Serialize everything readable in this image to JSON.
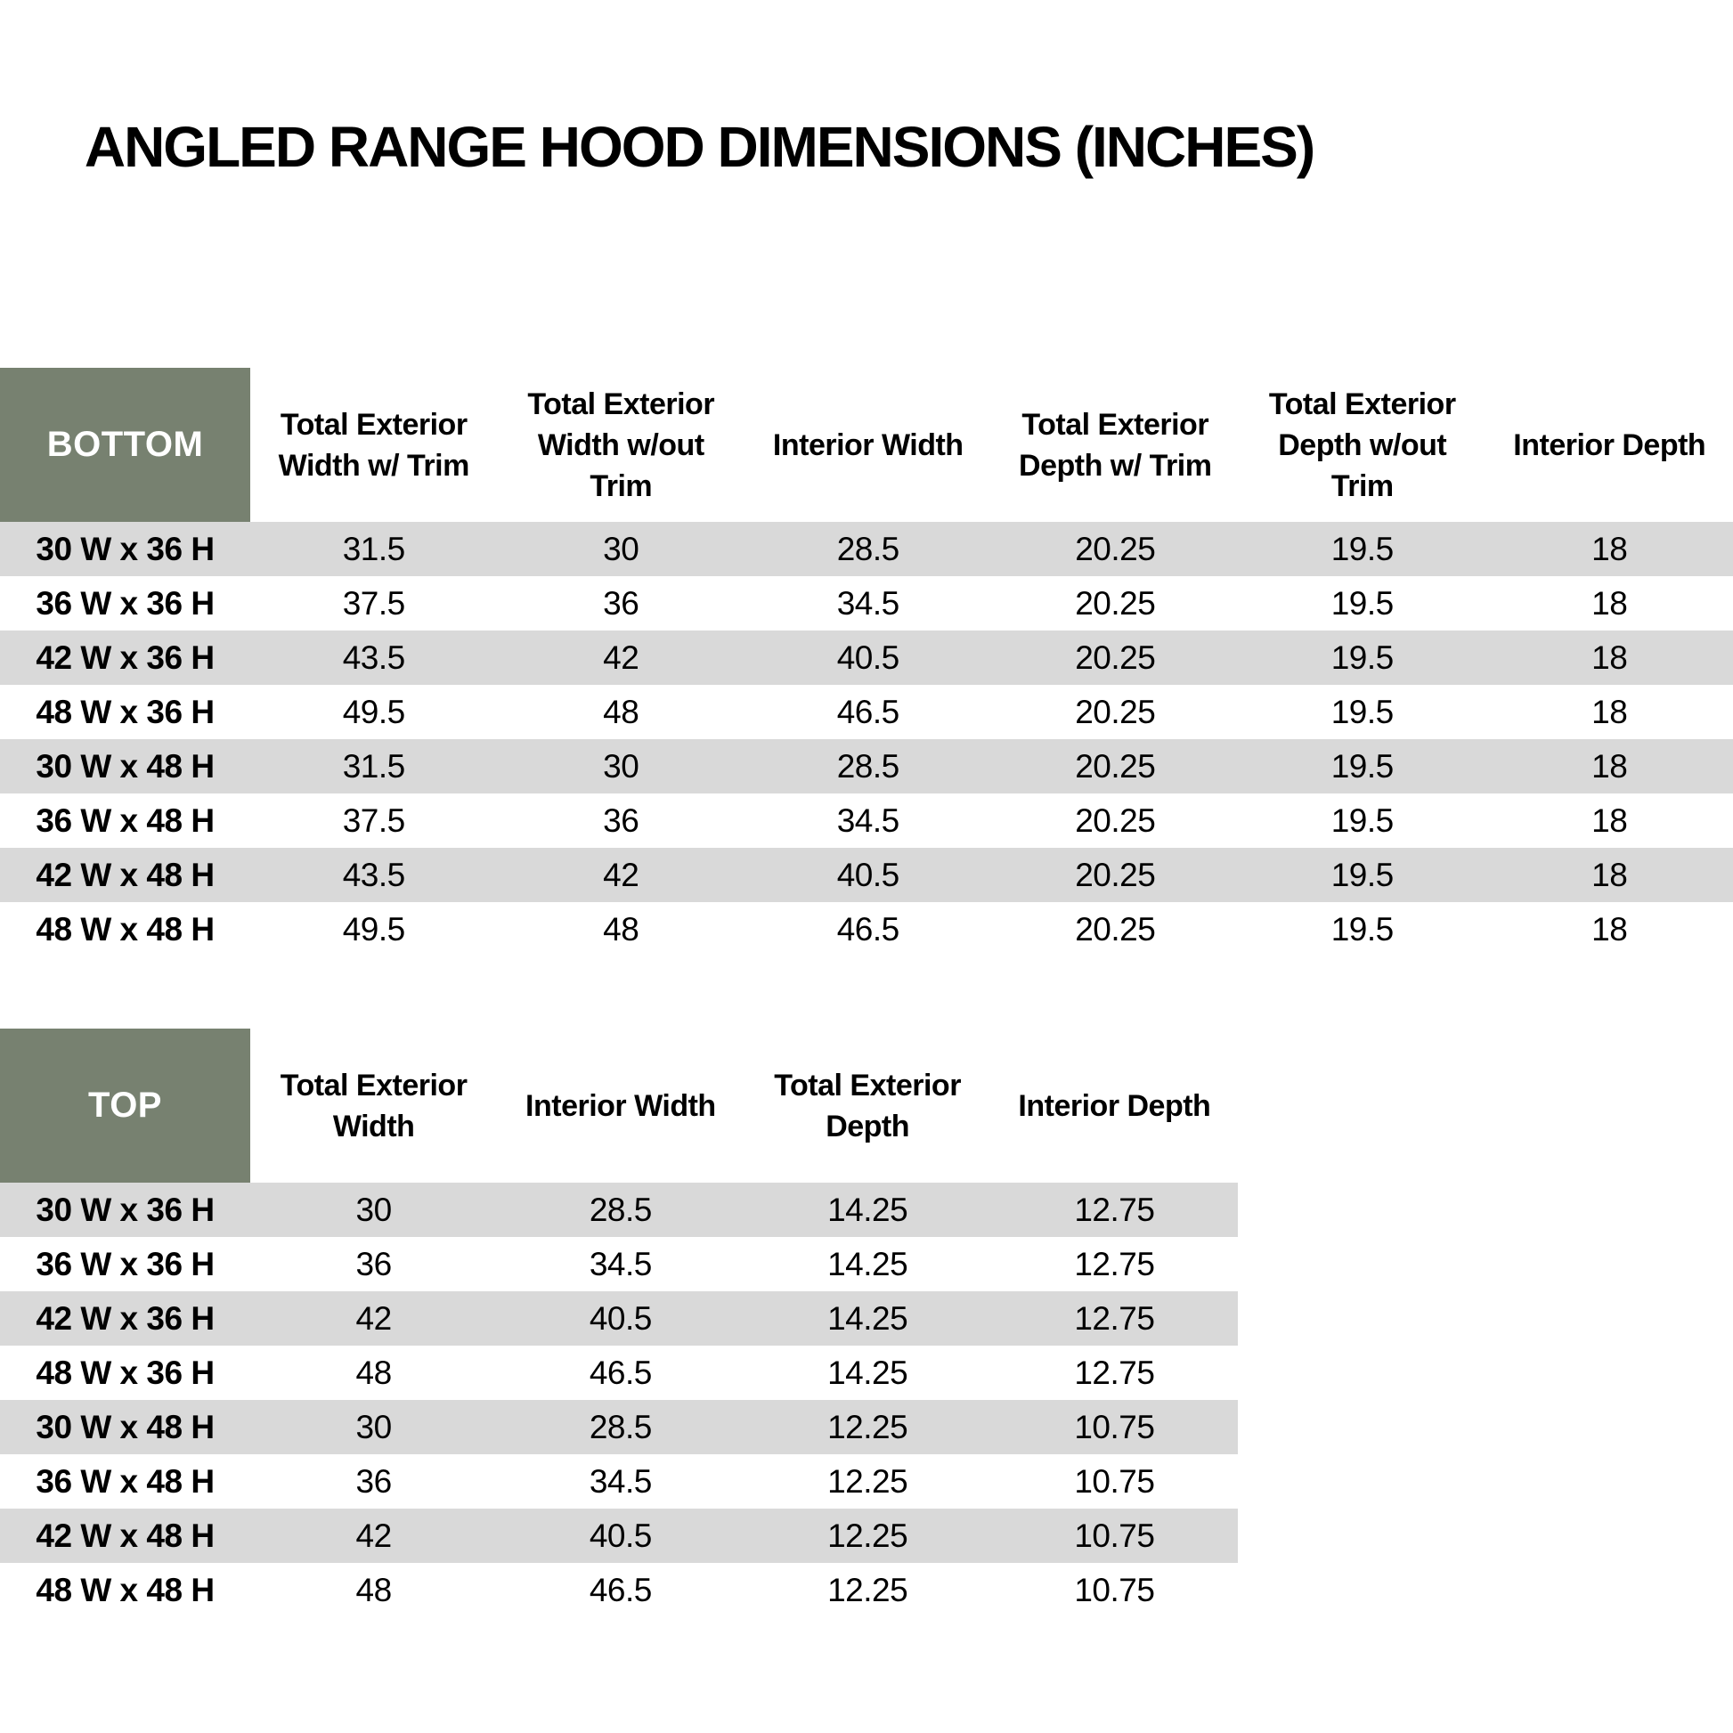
{
  "title": "ANGLED RANGE HOOD DIMENSIONS (INCHES)",
  "colors": {
    "header_green": "#778170",
    "stripe_gray": "#d9d9d9",
    "header_text": "#ffffff",
    "body_text": "#000000"
  },
  "bottom_table": {
    "label": "BOTTOM",
    "columns": [
      "Total Exterior Width w/ Trim",
      "Total Exterior Width w/out Trim",
      "Interior Width",
      "Total Exterior Depth w/ Trim",
      "Total Exterior Depth w/out Trim",
      "Interior Depth"
    ],
    "rows": [
      {
        "size": "30 W x 36 H",
        "values": [
          "31.5",
          "30",
          "28.5",
          "20.25",
          "19.5",
          "18"
        ]
      },
      {
        "size": "36 W x 36 H",
        "values": [
          "37.5",
          "36",
          "34.5",
          "20.25",
          "19.5",
          "18"
        ]
      },
      {
        "size": "42 W x 36 H",
        "values": [
          "43.5",
          "42",
          "40.5",
          "20.25",
          "19.5",
          "18"
        ]
      },
      {
        "size": "48 W x 36 H",
        "values": [
          "49.5",
          "48",
          "46.5",
          "20.25",
          "19.5",
          "18"
        ]
      },
      {
        "size": "30 W x 48 H",
        "values": [
          "31.5",
          "30",
          "28.5",
          "20.25",
          "19.5",
          "18"
        ]
      },
      {
        "size": "36 W x 48 H",
        "values": [
          "37.5",
          "36",
          "34.5",
          "20.25",
          "19.5",
          "18"
        ]
      },
      {
        "size": "42 W x 48 H",
        "values": [
          "43.5",
          "42",
          "40.5",
          "20.25",
          "19.5",
          "18"
        ]
      },
      {
        "size": "48 W x 48 H",
        "values": [
          "49.5",
          "48",
          "46.5",
          "20.25",
          "19.5",
          "18"
        ]
      }
    ]
  },
  "top_table": {
    "label": "TOP",
    "columns": [
      "Total Exterior Width",
      "Interior Width",
      "Total Exterior Depth",
      "Interior Depth"
    ],
    "rows": [
      {
        "size": "30 W x 36 H",
        "values": [
          "30",
          "28.5",
          "14.25",
          "12.75"
        ]
      },
      {
        "size": "36 W x 36 H",
        "values": [
          "36",
          "34.5",
          "14.25",
          "12.75"
        ]
      },
      {
        "size": "42 W x 36 H",
        "values": [
          "42",
          "40.5",
          "14.25",
          "12.75"
        ]
      },
      {
        "size": "48 W x 36 H",
        "values": [
          "48",
          "46.5",
          "14.25",
          "12.75"
        ]
      },
      {
        "size": "30 W x 48 H",
        "values": [
          "30",
          "28.5",
          "12.25",
          "10.75"
        ]
      },
      {
        "size": "36 W x 48 H",
        "values": [
          "36",
          "34.5",
          "12.25",
          "10.75"
        ]
      },
      {
        "size": "42 W x 48 H",
        "values": [
          "42",
          "40.5",
          "12.25",
          "10.75"
        ]
      },
      {
        "size": "48 W x 48 H",
        "values": [
          "48",
          "46.5",
          "12.25",
          "10.75"
        ]
      }
    ]
  }
}
